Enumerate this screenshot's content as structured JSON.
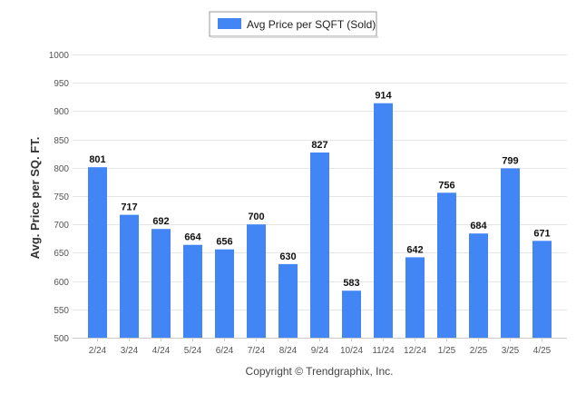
{
  "chart_data": {
    "type": "bar",
    "categories": [
      "2/24",
      "3/24",
      "4/24",
      "5/24",
      "6/24",
      "7/24",
      "8/24",
      "9/24",
      "10/24",
      "11/24",
      "12/24",
      "1/25",
      "2/25",
      "3/25",
      "4/25"
    ],
    "series": [
      {
        "name": "Avg Price per SQFT (Sold)",
        "values": [
          801,
          717,
          692,
          664,
          656,
          700,
          630,
          827,
          583,
          914,
          642,
          756,
          684,
          799,
          671
        ]
      }
    ],
    "title": "",
    "xlabel": "",
    "ylabel": "Avg. Price per SQ. FT.",
    "ylim": [
      500,
      1000
    ],
    "yticks": [
      500,
      550,
      600,
      650,
      700,
      750,
      800,
      850,
      900,
      950,
      1000
    ],
    "grid": true,
    "legend_position": "top-center",
    "colors": {
      "bar": "#4285F4",
      "grid": "#e6e6e6",
      "axis": "#cccccc"
    },
    "data_labels": true
  },
  "footer": {
    "copyright": "Copyright © Trendgraphix, Inc."
  }
}
